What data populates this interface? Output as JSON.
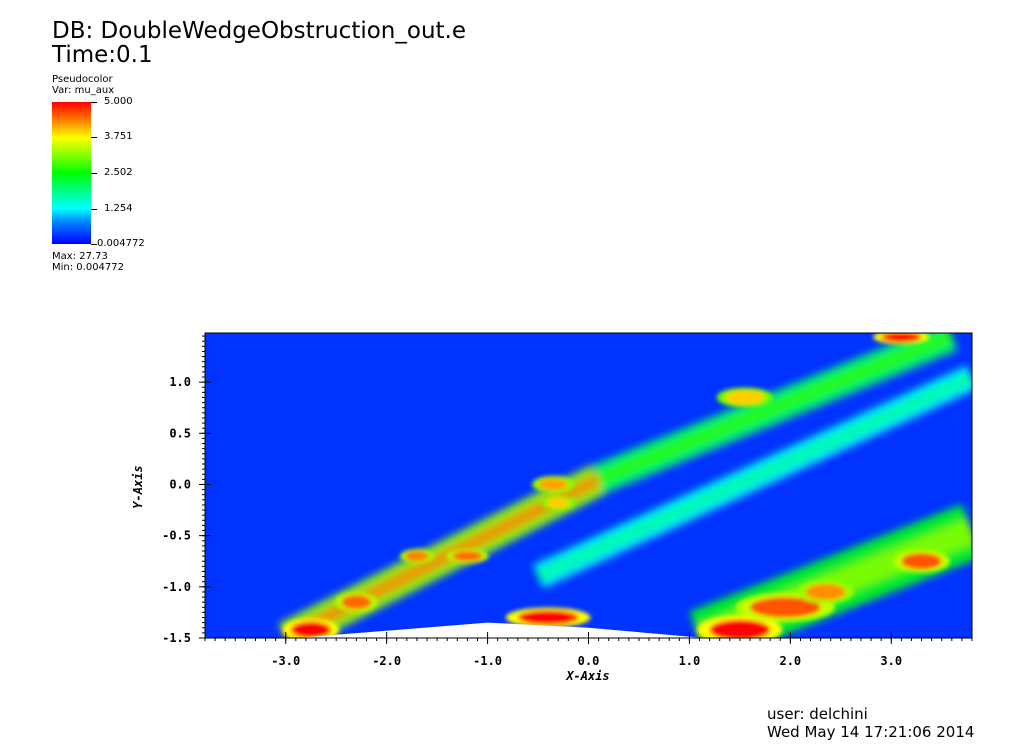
{
  "header": {
    "db_title": "DB: DoubleWedgeObstruction_out.e",
    "time": "Time:0.1"
  },
  "legend": {
    "plot_type": "Pseudocolor",
    "variable": "Var: mu_aux",
    "tick_labels": [
      "5.000",
      "3.751",
      "2.502",
      "1.254",
      "0.004772"
    ],
    "max_label": "Max: 27.73",
    "min_label": "Min: 0.004772"
  },
  "footer": {
    "user": "user: delchini",
    "date": "Wed May 14 17:21:06 2014"
  },
  "colors": {
    "background_field": "#0033ff",
    "low": "#0000ff",
    "mid": "#00ff00",
    "high": "#ff0000"
  },
  "chart_data": {
    "type": "heatmap",
    "title": "DB: DoubleWedgeObstruction_out.e",
    "variable": "mu_aux",
    "xlabel": "X-Axis",
    "ylabel": "Y-Axis",
    "xlim": [
      -3.8,
      3.8
    ],
    "ylim": [
      -1.5,
      1.48
    ],
    "x_ticks": [
      -3.0,
      -2.0,
      -1.0,
      0.0,
      1.0,
      2.0,
      3.0
    ],
    "x_tick_labels": [
      "-3.0",
      "-2.0",
      "-1.0",
      "0.0",
      "1.0",
      "2.0",
      "3.0"
    ],
    "y_ticks": [
      -1.5,
      -1.0,
      -0.5,
      0.0,
      0.5,
      1.0
    ],
    "y_tick_labels": [
      "-1.5",
      "-1.0",
      "-0.5",
      "0.0",
      "0.5",
      "1.0"
    ],
    "color_range": [
      0.004772,
      5.0
    ],
    "wedge_boundary": [
      [
        -3.8,
        -1.5
      ],
      [
        -2.9,
        -1.5
      ],
      [
        -1.0,
        -1.35
      ],
      [
        0.0,
        -1.4
      ],
      [
        1.15,
        -1.5
      ],
      [
        3.8,
        -1.5
      ]
    ],
    "bands": [
      {
        "from": [
          -3.0,
          -1.5
        ],
        "to": [
          0.1,
          0.05
        ],
        "width": 0.32,
        "level": 3.2
      },
      {
        "from": [
          0.1,
          0.05
        ],
        "to": [
          3.6,
          1.45
        ],
        "width": 0.3,
        "level": 2.0
      },
      {
        "from": [
          -0.5,
          -0.9
        ],
        "to": [
          3.8,
          1.05
        ],
        "width": 0.25,
        "level": 1.3
      },
      {
        "from": [
          1.1,
          -1.5
        ],
        "to": [
          3.8,
          -0.45
        ],
        "width": 0.55,
        "level": 2.4
      }
    ],
    "hot_spots": [
      {
        "x": -2.75,
        "y": -1.42,
        "rx": 0.2,
        "ry": 0.08,
        "level": 5.0
      },
      {
        "x": -2.3,
        "y": -1.15,
        "rx": 0.15,
        "ry": 0.07,
        "level": 4.5
      },
      {
        "x": -1.2,
        "y": -0.7,
        "rx": 0.15,
        "ry": 0.05,
        "level": 4.5
      },
      {
        "x": -0.4,
        "y": -1.3,
        "rx": 0.3,
        "ry": 0.07,
        "level": 5.0
      },
      {
        "x": 1.5,
        "y": -1.42,
        "rx": 0.3,
        "ry": 0.1,
        "level": 5.0
      },
      {
        "x": 1.95,
        "y": -1.2,
        "rx": 0.35,
        "ry": 0.1,
        "level": 4.6
      },
      {
        "x": 2.35,
        "y": -1.05,
        "rx": 0.2,
        "ry": 0.08,
        "level": 4.3
      },
      {
        "x": 3.3,
        "y": -0.75,
        "rx": 0.2,
        "ry": 0.08,
        "level": 4.6
      },
      {
        "x": 3.1,
        "y": 1.44,
        "rx": 0.2,
        "ry": 0.05,
        "level": 5.0
      },
      {
        "x": 1.55,
        "y": 0.85,
        "rx": 0.2,
        "ry": 0.07,
        "level": 4.0
      },
      {
        "x": -0.35,
        "y": 0.0,
        "rx": 0.15,
        "ry": 0.06,
        "level": 4.2
      },
      {
        "x": -1.7,
        "y": -0.7,
        "rx": 0.12,
        "ry": 0.05,
        "level": 4.4
      },
      {
        "x": -0.3,
        "y": -0.18,
        "rx": 0.12,
        "ry": 0.05,
        "level": 4.0
      }
    ]
  }
}
